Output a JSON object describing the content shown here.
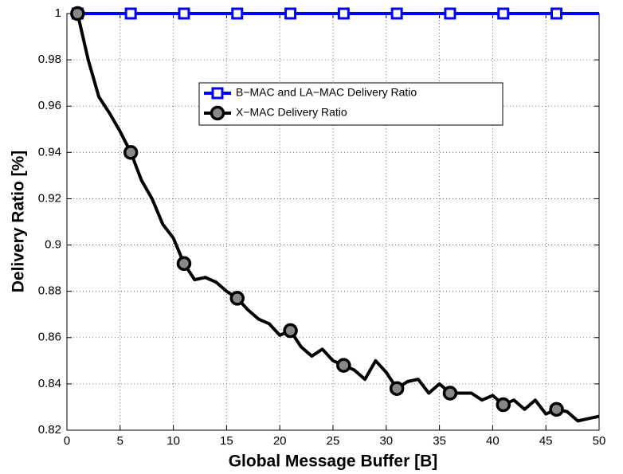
{
  "chart_data": {
    "type": "line",
    "xlabel": "Global Message Buffer [B]",
    "ylabel": "Delivery Ratio [%]",
    "x": [
      1,
      2,
      3,
      4,
      5,
      6,
      7,
      8,
      9,
      10,
      11,
      12,
      13,
      14,
      15,
      16,
      17,
      18,
      19,
      20,
      21,
      22,
      23,
      24,
      25,
      26,
      27,
      28,
      29,
      30,
      31,
      32,
      33,
      34,
      35,
      36,
      37,
      38,
      39,
      40,
      41,
      42,
      43,
      44,
      45,
      46,
      47,
      48,
      49,
      50
    ],
    "series": [
      {
        "name": "B−MAC and LA−MAC Delivery Ratio",
        "color": "#0000ff",
        "marker": "square",
        "values": [
          1,
          1,
          1,
          1,
          1,
          1,
          1,
          1,
          1,
          1,
          1,
          1,
          1,
          1,
          1,
          1,
          1,
          1,
          1,
          1,
          1,
          1,
          1,
          1,
          1,
          1,
          1,
          1,
          1,
          1,
          1,
          1,
          1,
          1,
          1,
          1,
          1,
          1,
          1,
          1,
          1,
          1,
          1,
          1,
          1,
          1,
          1,
          1,
          1,
          1
        ]
      },
      {
        "name": "X−MAC Delivery Ratio",
        "color": "#000000",
        "marker": "circle",
        "values": [
          1,
          0.98,
          0.964,
          0.957,
          0.949,
          0.94,
          0.928,
          0.92,
          0.909,
          0.903,
          0.892,
          0.885,
          0.886,
          0.884,
          0.88,
          0.877,
          0.872,
          0.868,
          0.866,
          0.861,
          0.863,
          0.856,
          0.852,
          0.855,
          0.85,
          0.848,
          0.846,
          0.842,
          0.85,
          0.845,
          0.838,
          0.841,
          0.842,
          0.836,
          0.84,
          0.836,
          0.836,
          0.836,
          0.833,
          0.835,
          0.831,
          0.833,
          0.829,
          0.833,
          0.827,
          0.829,
          0.828,
          0.824,
          0.825,
          0.826
        ]
      }
    ],
    "marker_every": 5,
    "xlim": [
      0,
      50
    ],
    "xticks": [
      0,
      5,
      10,
      15,
      20,
      25,
      30,
      35,
      40,
      45,
      50
    ],
    "ylim": [
      0.82,
      1
    ],
    "yticks": [
      0.82,
      0.84,
      0.86,
      0.88,
      0.9,
      0.92,
      0.94,
      0.96,
      0.98,
      1
    ],
    "grid": true,
    "legend": "upper center"
  }
}
